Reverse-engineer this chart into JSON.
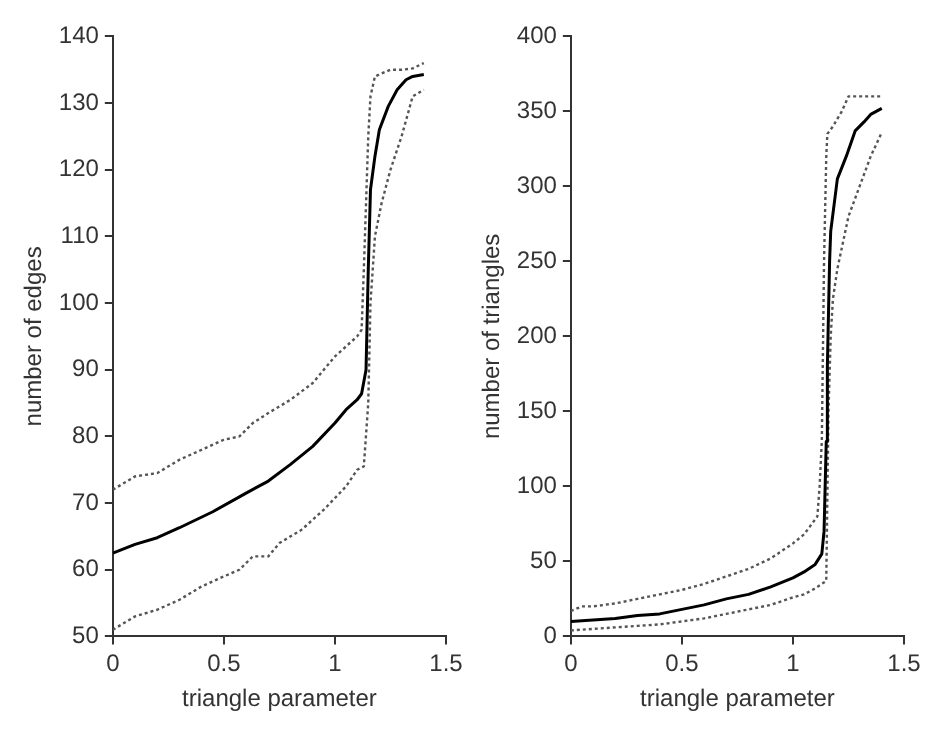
{
  "chart_data": [
    {
      "type": "line",
      "xlabel": "triangle parameter",
      "ylabel": "number of edges",
      "xlim": [
        0,
        1.5
      ],
      "xticks": [
        0,
        0.5,
        1,
        1.5
      ],
      "ylim": [
        50,
        140
      ],
      "yticks": [
        50,
        60,
        70,
        80,
        90,
        100,
        110,
        120,
        130,
        140
      ],
      "grid": false,
      "legend": false,
      "marker": "none",
      "series": [
        {
          "color": "#000000",
          "line_style": "solid",
          "x": [
            0,
            0.1,
            0.2,
            0.3,
            0.45,
            0.6,
            0.7,
            0.8,
            0.9,
            1.0,
            1.05,
            1.1,
            1.12,
            1.14,
            1.15,
            1.16,
            1.18,
            1.2,
            1.24,
            1.28,
            1.32,
            1.35,
            1.4
          ],
          "values": [
            62.5,
            63.8,
            64.8,
            66.3,
            68.7,
            71.5,
            73.3,
            75.8,
            78.5,
            82,
            84,
            85.5,
            86.4,
            90,
            105,
            117,
            122,
            126,
            129.5,
            132,
            133.5,
            134,
            134.3
          ]
        },
        {
          "color": "#555555",
          "line_style": "dotted",
          "x": [
            0,
            0.1,
            0.2,
            0.3,
            0.4,
            0.5,
            0.57,
            0.63,
            0.7,
            0.8,
            0.9,
            1.0,
            1.05,
            1.1,
            1.12,
            1.13,
            1.14,
            1.15,
            1.16,
            1.18,
            1.2,
            1.25,
            1.3,
            1.35,
            1.4
          ],
          "values": [
            72,
            74,
            74.5,
            76.5,
            78,
            79.5,
            80,
            82,
            83.5,
            85.5,
            88,
            92,
            93.5,
            95,
            96,
            105,
            115,
            125,
            131,
            134,
            134.3,
            135,
            135,
            135.2,
            136
          ]
        },
        {
          "color": "#555555",
          "line_style": "dotted",
          "x": [
            0,
            0.1,
            0.2,
            0.3,
            0.4,
            0.5,
            0.57,
            0.63,
            0.7,
            0.75,
            0.85,
            0.95,
            1.05,
            1.1,
            1.13,
            1.15,
            1.16,
            1.18,
            1.21,
            1.25,
            1.3,
            1.35,
            1.4
          ],
          "values": [
            51,
            53,
            54,
            55.5,
            57.5,
            59,
            60,
            62,
            62,
            64,
            66,
            69,
            72.5,
            75,
            75.5,
            85,
            100,
            110,
            115,
            120,
            125,
            131,
            132
          ]
        }
      ]
    },
    {
      "type": "line",
      "xlabel": "triangle parameter",
      "ylabel": "number of triangles",
      "xlim": [
        0,
        1.5
      ],
      "xticks": [
        0,
        0.5,
        1,
        1.5
      ],
      "ylim": [
        0,
        400
      ],
      "yticks": [
        0,
        50,
        100,
        150,
        200,
        250,
        300,
        350,
        400
      ],
      "grid": false,
      "legend": false,
      "marker": "none",
      "series": [
        {
          "color": "#000000",
          "line_style": "solid",
          "x": [
            0,
            0.1,
            0.2,
            0.3,
            0.4,
            0.5,
            0.6,
            0.7,
            0.8,
            0.9,
            1.0,
            1.05,
            1.1,
            1.13,
            1.14,
            1.15,
            1.155,
            1.165,
            1.17,
            1.2,
            1.24,
            1.28,
            1.32,
            1.35,
            1.4
          ],
          "values": [
            10,
            11,
            12,
            14,
            15,
            18,
            21,
            25,
            28,
            33,
            39,
            43,
            48,
            55,
            70,
            130,
            180,
            250,
            270,
            305,
            320,
            337,
            343,
            348,
            352
          ]
        },
        {
          "color": "#555555",
          "line_style": "dotted",
          "x": [
            0,
            0.05,
            0.1,
            0.2,
            0.3,
            0.4,
            0.5,
            0.6,
            0.7,
            0.8,
            0.9,
            1.0,
            1.05,
            1.08,
            1.11,
            1.12,
            1.13,
            1.14,
            1.15,
            1.155,
            1.18,
            1.2,
            1.22,
            1.25,
            1.3,
            1.4
          ],
          "values": [
            17,
            20,
            20,
            22,
            25,
            28,
            31,
            35,
            40,
            45,
            52,
            62,
            68,
            74,
            80,
            100,
            130,
            250,
            320,
            335,
            340,
            345,
            350,
            360,
            360,
            360
          ]
        },
        {
          "color": "#555555",
          "line_style": "dotted",
          "x": [
            0,
            0.1,
            0.2,
            0.3,
            0.4,
            0.5,
            0.6,
            0.7,
            0.8,
            0.9,
            1.0,
            1.05,
            1.1,
            1.15,
            1.16,
            1.17,
            1.18,
            1.2,
            1.25,
            1.3,
            1.35,
            1.4
          ],
          "values": [
            4,
            5,
            6,
            7,
            8,
            10,
            12,
            15,
            18,
            21,
            26,
            28,
            32,
            37,
            150,
            200,
            225,
            245,
            280,
            300,
            320,
            336
          ]
        }
      ]
    }
  ]
}
